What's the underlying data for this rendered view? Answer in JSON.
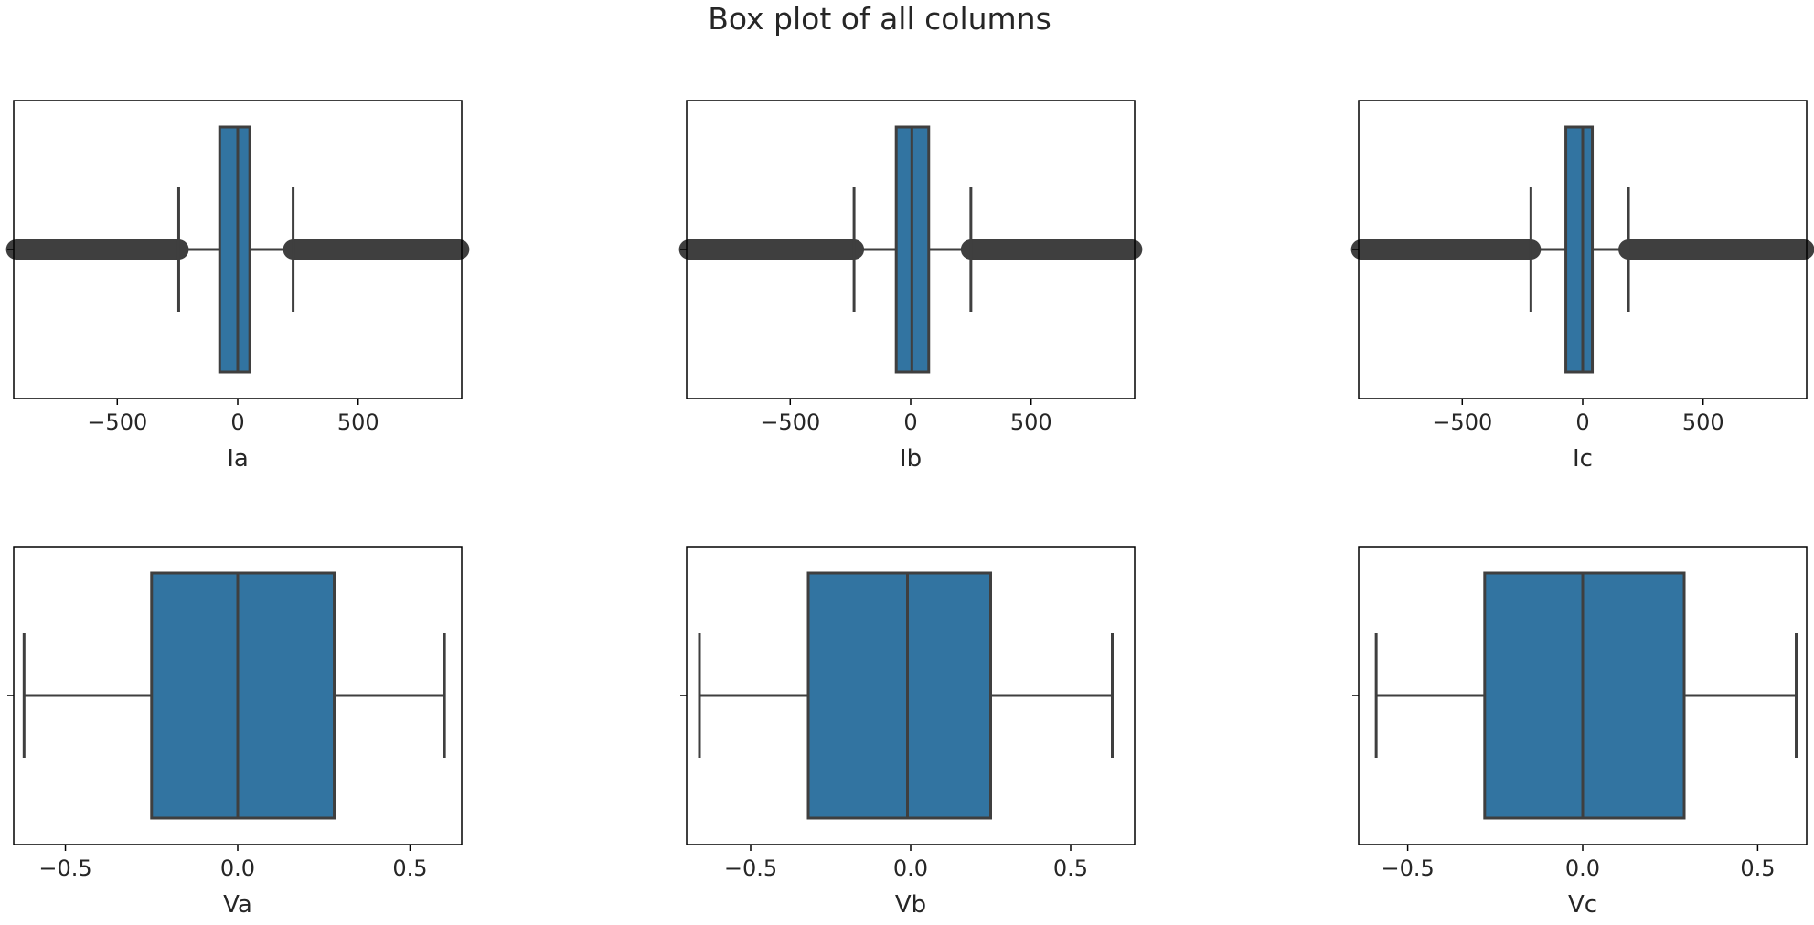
{
  "figure": {
    "title": "Box plot of all columns"
  },
  "chart_data": [
    {
      "type": "box",
      "xlabel": "Ia",
      "xlim": [
        -930,
        930
      ],
      "xticks": [
        -500,
        0,
        500
      ],
      "xtick_labels": [
        "−500",
        "0",
        "500"
      ],
      "box_color": "#3274a1",
      "line_color": "#3f3f3f",
      "stats": {
        "whisker_low": -245,
        "q1": -75,
        "median": 0,
        "q3": 50,
        "whisker_high": 230
      },
      "outliers": [
        [
          -920,
          -245
        ],
        [
          230,
          920
        ]
      ]
    },
    {
      "type": "box",
      "xlabel": "Ib",
      "xlim": [
        -930,
        930
      ],
      "xticks": [
        -500,
        0,
        500
      ],
      "xtick_labels": [
        "−500",
        "0",
        "500"
      ],
      "box_color": "#3274a1",
      "line_color": "#3f3f3f",
      "stats": {
        "whisker_low": -235,
        "q1": -60,
        "median": 5,
        "q3": 75,
        "whisker_high": 250
      },
      "outliers": [
        [
          -920,
          -235
        ],
        [
          250,
          920
        ]
      ]
    },
    {
      "type": "box",
      "xlabel": "Ic",
      "xlim": [
        -930,
        930
      ],
      "xticks": [
        -500,
        0,
        500
      ],
      "xtick_labels": [
        "−500",
        "0",
        "500"
      ],
      "box_color": "#3274a1",
      "line_color": "#3f3f3f",
      "stats": {
        "whisker_low": -215,
        "q1": -70,
        "median": 0,
        "q3": 40,
        "whisker_high": 190
      },
      "outliers": [
        [
          -920,
          -215
        ],
        [
          190,
          920
        ]
      ]
    },
    {
      "type": "box",
      "xlabel": "Va",
      "xlim": [
        -0.65,
        0.65
      ],
      "xticks": [
        -0.5,
        0,
        0.5
      ],
      "xtick_labels": [
        "−0.5",
        "0.0",
        "0.5"
      ],
      "box_color": "#3274a1",
      "line_color": "#3f3f3f",
      "stats": {
        "whisker_low": -0.62,
        "q1": -0.25,
        "median": 0.0,
        "q3": 0.28,
        "whisker_high": 0.6
      },
      "outliers": []
    },
    {
      "type": "box",
      "xlabel": "Vb",
      "xlim": [
        -0.7,
        0.7
      ],
      "xticks": [
        -0.5,
        0,
        0.5
      ],
      "xtick_labels": [
        "−0.5",
        "0.0",
        "0.5"
      ],
      "box_color": "#3274a1",
      "line_color": "#3f3f3f",
      "stats": {
        "whisker_low": -0.66,
        "q1": -0.32,
        "median": -0.01,
        "q3": 0.25,
        "whisker_high": 0.63
      },
      "outliers": []
    },
    {
      "type": "box",
      "xlabel": "Vc",
      "xlim": [
        -0.64,
        0.64
      ],
      "xticks": [
        -0.5,
        0,
        0.5
      ],
      "xtick_labels": [
        "−0.5",
        "0.0",
        "0.5"
      ],
      "box_color": "#3274a1",
      "line_color": "#3f3f3f",
      "stats": {
        "whisker_low": -0.59,
        "q1": -0.28,
        "median": 0.0,
        "q3": 0.29,
        "whisker_high": 0.61
      },
      "outliers": []
    }
  ]
}
